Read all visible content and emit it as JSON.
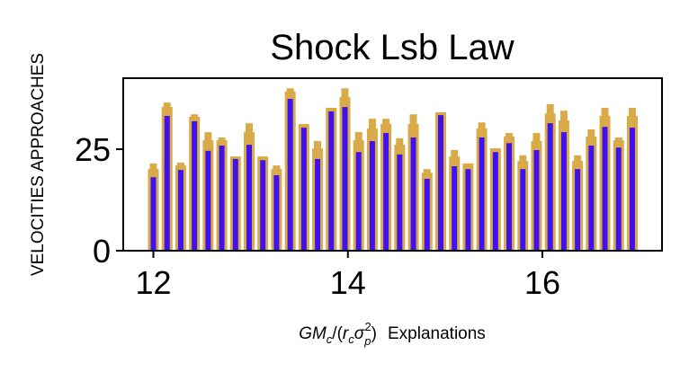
{
  "chart_data": {
    "type": "bar",
    "title": "Shock Lsb Law",
    "ylabel": "VELOCITIES APPROACHES",
    "xlabel": {
      "math_parts": [
        "GM",
        "c",
        "/(",
        "r",
        "c",
        "σ",
        "p",
        "2",
        ")"
      ],
      "text": "Explanations"
    },
    "xlim": [
      11.69,
      17.23
    ],
    "ylim": [
      0,
      42.5
    ],
    "xticks": [
      {
        "value": 12,
        "label": "12"
      },
      {
        "value": 14,
        "label": "14"
      },
      {
        "value": 16,
        "label": "16"
      }
    ],
    "yticks": [
      {
        "value": 0,
        "label": "0"
      },
      {
        "value": 25,
        "label": "25"
      }
    ],
    "grid": false,
    "x_start": 12,
    "x_step": 0.1407,
    "series": [
      {
        "name": "blue",
        "color": "#3f10f0",
        "values": [
          18.1,
          33.2,
          19.9,
          31.9,
          24.6,
          25.9,
          22.6,
          26.1,
          22.3,
          18.6,
          37.4,
          30.3,
          22.6,
          34.3,
          35.4,
          24.3,
          27.0,
          29.0,
          23.7,
          27.9,
          17.7,
          33.4,
          20.8,
          20.1,
          27.9,
          24.3,
          26.5,
          20.1,
          24.8,
          31.4,
          29.2,
          20.1,
          25.9,
          30.5,
          25.4,
          30.3
        ]
      },
      {
        "name": "gold",
        "color": "#daaa48",
        "values": [
          20.1,
          35.4,
          21.0,
          33.0,
          27.2,
          27.2,
          23.2,
          29.2,
          23.2,
          20.1,
          39.2,
          31.2,
          25.2,
          35.2,
          37.8,
          27.2,
          30.1,
          31.2,
          26.1,
          31.2,
          19.2,
          34.1,
          23.2,
          21.5,
          30.1,
          25.2,
          28.1,
          22.1,
          27.0,
          33.8,
          32.1,
          22.1,
          28.1,
          33.2,
          27.2,
          33.2
        ]
      },
      {
        "name": "gold-cap",
        "color": "#daaa48",
        "values": [
          21.5,
          36.5,
          21.7,
          33.6,
          29.2,
          27.9,
          23.2,
          31.4,
          23.2,
          21.0,
          40.0,
          31.2,
          27.0,
          35.2,
          40.0,
          29.2,
          32.5,
          32.5,
          27.7,
          33.6,
          20.1,
          34.1,
          24.8,
          21.5,
          31.6,
          25.2,
          29.0,
          23.5,
          29.0,
          36.1,
          34.5,
          23.5,
          29.9,
          35.2,
          27.9,
          35.2
        ]
      }
    ]
  }
}
